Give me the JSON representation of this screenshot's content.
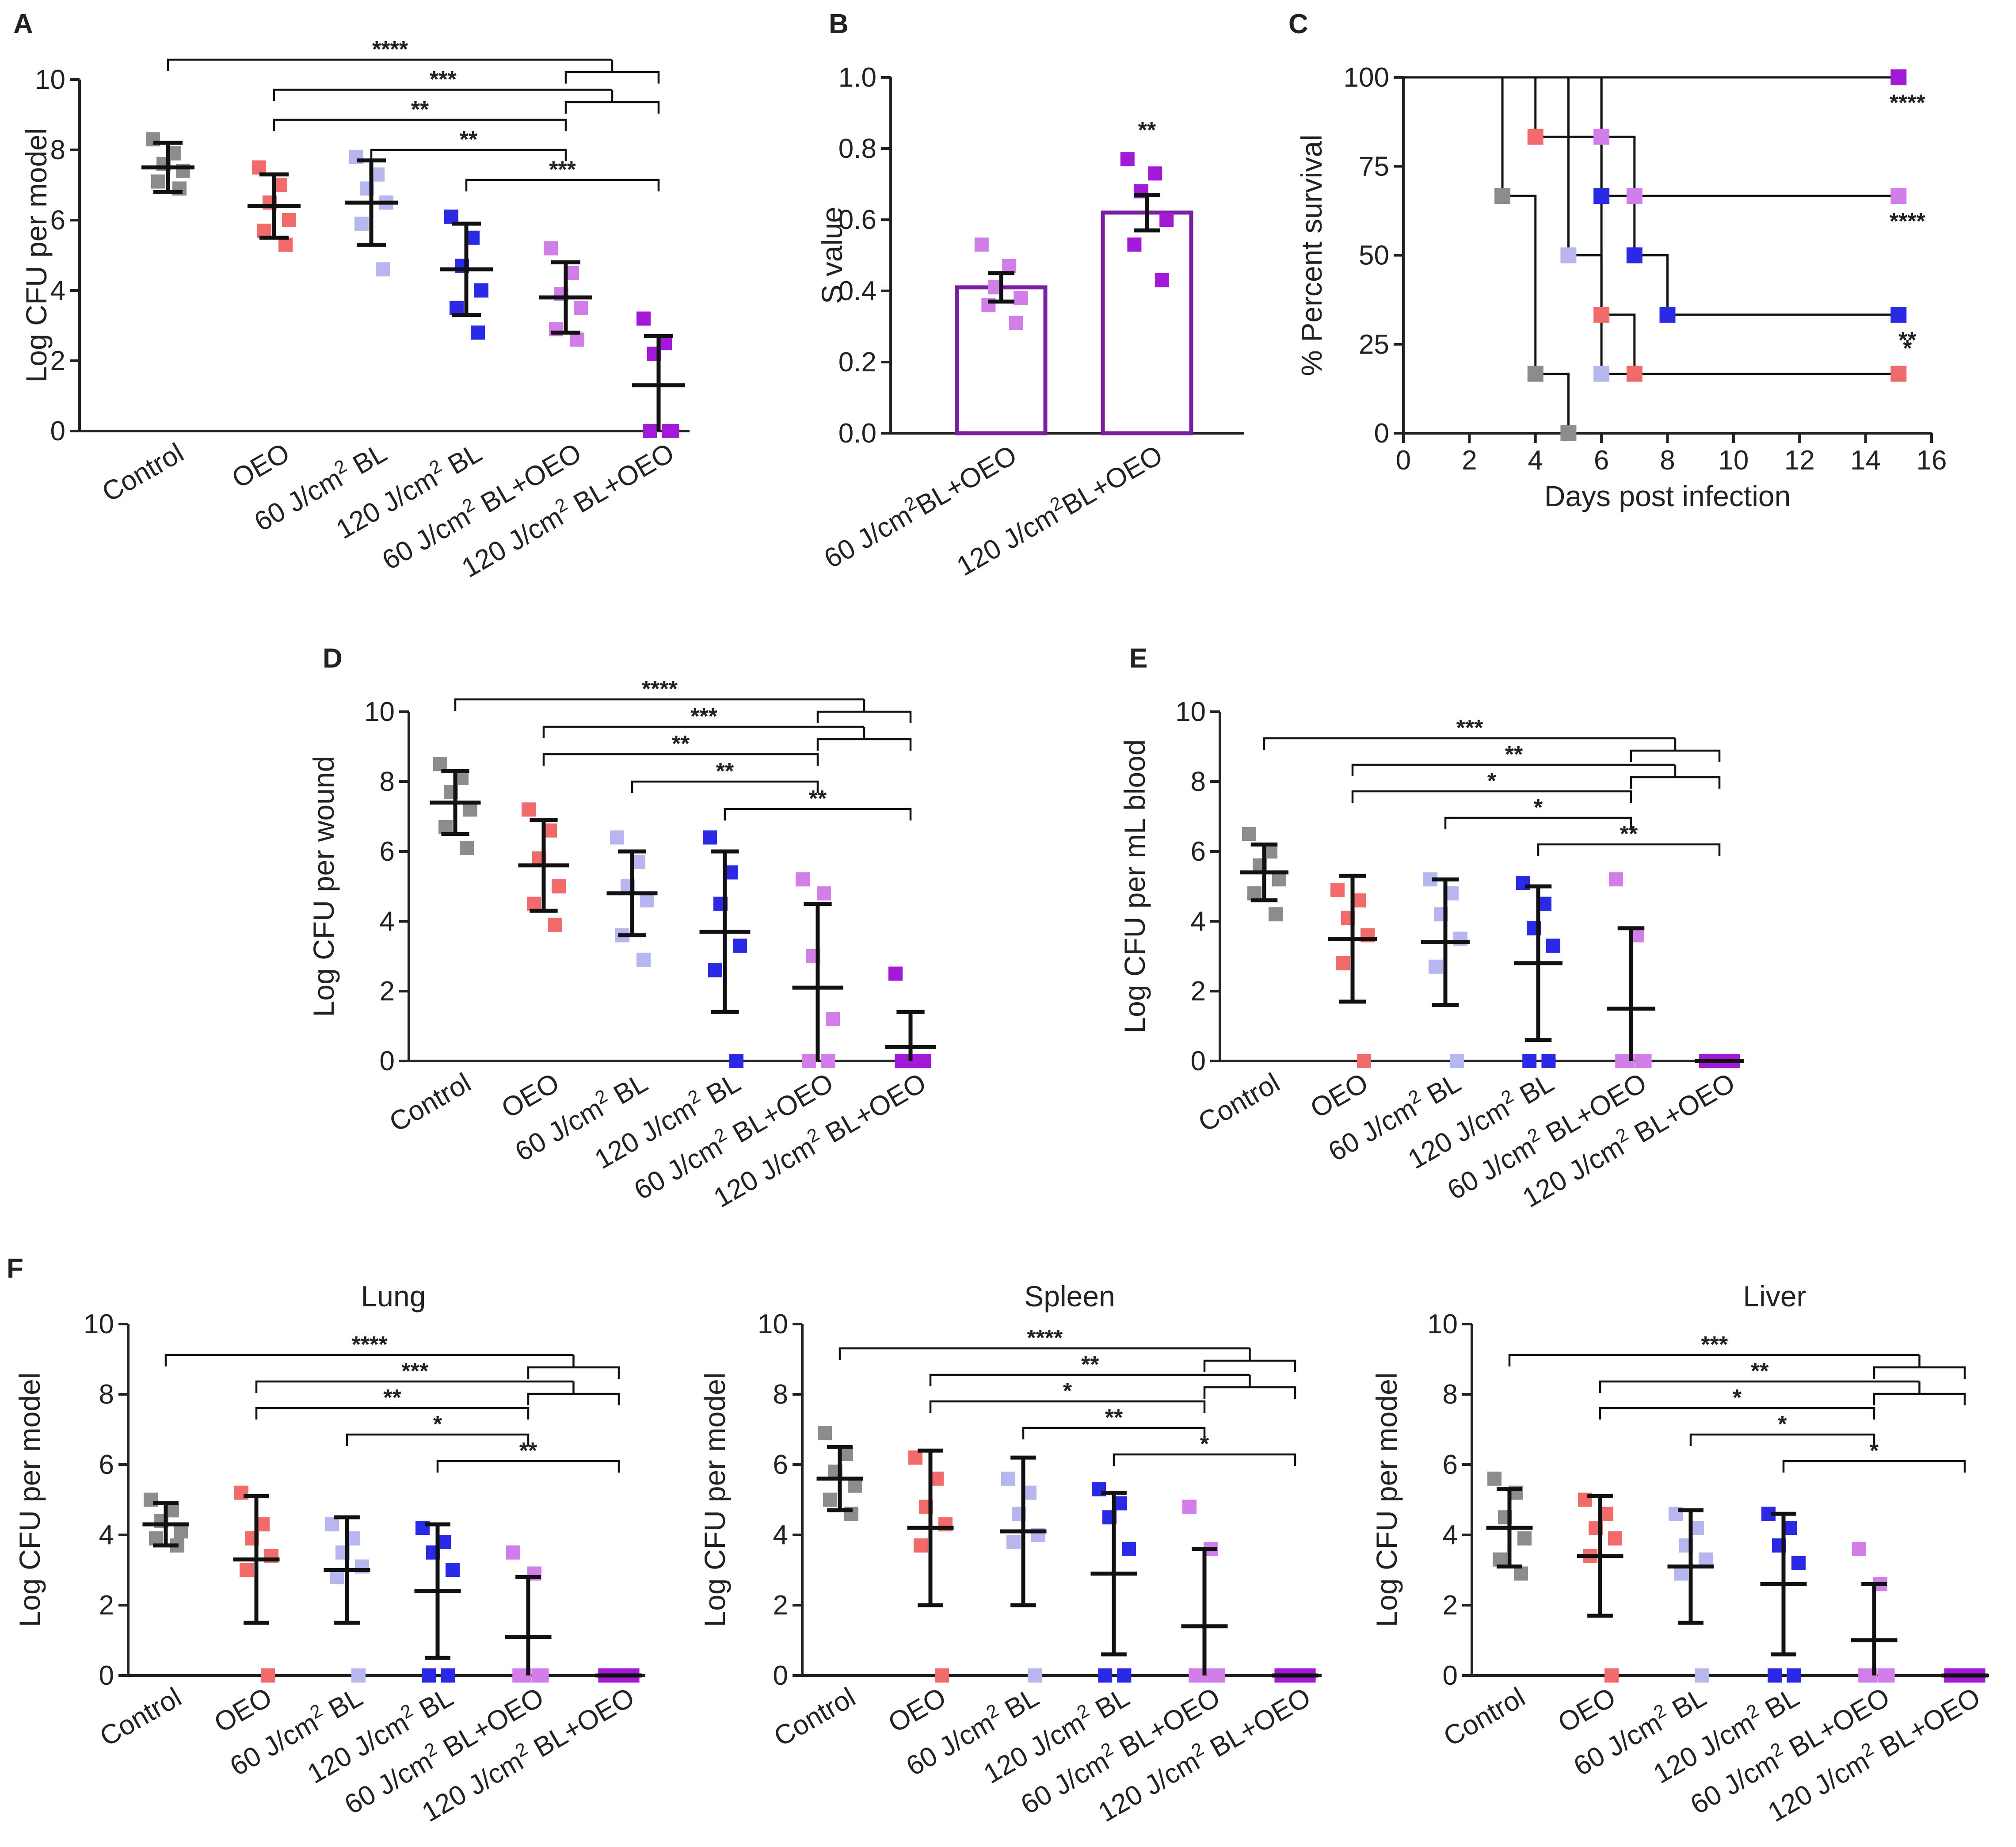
{
  "colors": {
    "Control": "#8c8c8c",
    "OEO": "#f26b6b",
    "60 BL": "#b7b6ee",
    "120 BL": "#2a2ae6",
    "60 BL+OEO": "#d17ee8",
    "120 BL+OEO": "#a21ad8",
    "bar_outline": "#7b1fa2"
  },
  "group_labels": [
    "Control",
    "OEO",
    "60 J/cm2 BL",
    "120 J/cm2 BL",
    "60 J/cm2 BL+OEO",
    "120 J/cm2 BL+OEO"
  ],
  "chart_data": [
    {
      "id": "A",
      "panel_label": "A",
      "type": "scatter",
      "title": "",
      "ylabel": "Log CFU per model",
      "ylim": [
        0,
        10
      ],
      "yticks": [
        "0",
        "2",
        "4",
        "6",
        "8",
        "10"
      ],
      "groups": [
        {
          "name": "Control",
          "mean": 7.5,
          "sd": 0.7,
          "points": [
            8.3,
            7.9,
            7.6,
            7.4,
            7.1,
            6.9
          ]
        },
        {
          "name": "OEO",
          "mean": 6.4,
          "sd": 0.9,
          "points": [
            7.5,
            7.0,
            6.5,
            6.0,
            5.7,
            5.3
          ]
        },
        {
          "name": "60 BL",
          "mean": 6.5,
          "sd": 1.2,
          "points": [
            7.8,
            7.3,
            6.9,
            6.5,
            5.9,
            4.6
          ]
        },
        {
          "name": "120 BL",
          "mean": 4.6,
          "sd": 1.3,
          "points": [
            6.1,
            5.5,
            4.7,
            4.0,
            3.5,
            2.8
          ]
        },
        {
          "name": "60 BL+OEO",
          "mean": 3.8,
          "sd": 1.0,
          "points": [
            5.2,
            4.5,
            3.9,
            3.5,
            2.9,
            2.6
          ]
        },
        {
          "name": "120 BL+OEO",
          "mean": 1.3,
          "sd": 1.4,
          "points": [
            3.2,
            2.5,
            2.2,
            0,
            0,
            0
          ]
        }
      ],
      "comparisons": [
        {
          "from": 0,
          "to": [
            4,
            5
          ],
          "label": "****"
        },
        {
          "from": 1,
          "to": [
            4,
            5
          ],
          "label": "***"
        },
        {
          "from": 1,
          "to": [
            4
          ],
          "label": "**"
        },
        {
          "from": 2,
          "to": [
            4
          ],
          "label": "**"
        },
        {
          "from": 3,
          "to": [
            5
          ],
          "label": "***"
        }
      ]
    },
    {
      "id": "B",
      "panel_label": "B",
      "type": "bar",
      "title": "",
      "ylabel": "S value",
      "ylim": [
        0,
        1.0
      ],
      "yticks": [
        "0.0",
        "0.2",
        "0.4",
        "0.6",
        "0.8",
        "1.0"
      ],
      "categories": [
        "60 J/cm2BL+OEO",
        "120 J/cm2BL+OEO"
      ],
      "values": [
        0.41,
        0.62
      ],
      "sem": [
        0.04,
        0.05
      ],
      "points": [
        [
          0.53,
          0.47,
          0.41,
          0.38,
          0.36,
          0.31
        ],
        [
          0.77,
          0.73,
          0.68,
          0.6,
          0.53,
          0.43
        ]
      ],
      "annotations": [
        {
          "index": 1,
          "label": "**"
        }
      ]
    },
    {
      "id": "C",
      "panel_label": "C",
      "type": "line",
      "title": "",
      "xlabel": "Days post infection",
      "ylabel": "% Percent survival",
      "xlim": [
        0,
        16
      ],
      "ylim": [
        0,
        100
      ],
      "xticks": [
        "0",
        "2",
        "4",
        "6",
        "8",
        "10",
        "12",
        "14",
        "16"
      ],
      "yticks": [
        "0",
        "25",
        "50",
        "75",
        "100"
      ],
      "series": [
        {
          "name": "120 BL+OEO",
          "steps": [
            [
              0,
              100
            ],
            [
              15,
              100
            ]
          ],
          "marks": [
            [
              15,
              100
            ]
          ],
          "label": "****"
        },
        {
          "name": "60 BL+OEO",
          "steps": [
            [
              0,
              100
            ],
            [
              6,
              100
            ],
            [
              6,
              83.3
            ],
            [
              7,
              83.3
            ],
            [
              7,
              66.7
            ],
            [
              15,
              66.7
            ]
          ],
          "marks": [
            [
              6,
              83.3
            ],
            [
              7,
              66.7
            ],
            [
              15,
              66.7
            ]
          ],
          "label": "****"
        },
        {
          "name": "120 BL",
          "steps": [
            [
              0,
              100
            ],
            [
              6,
              100
            ],
            [
              6,
              66.7
            ],
            [
              7,
              66.7
            ],
            [
              7,
              50
            ],
            [
              8,
              50
            ],
            [
              8,
              33.3
            ],
            [
              15,
              33.3
            ]
          ],
          "marks": [
            [
              6,
              66.7
            ],
            [
              7,
              50
            ],
            [
              8,
              33.3
            ],
            [
              15,
              33.3
            ]
          ],
          "label": "**"
        },
        {
          "name": "OEO",
          "steps": [
            [
              0,
              100
            ],
            [
              4,
              100
            ],
            [
              4,
              83.3
            ],
            [
              6,
              83.3
            ],
            [
              6,
              33.3
            ],
            [
              7,
              33.3
            ],
            [
              7,
              16.7
            ],
            [
              15,
              16.7
            ]
          ],
          "marks": [
            [
              4,
              83.3
            ],
            [
              6,
              33.3
            ],
            [
              7,
              16.7
            ],
            [
              15,
              16.7
            ]
          ],
          "label": "*"
        },
        {
          "name": "60 BL",
          "steps": [
            [
              0,
              100
            ],
            [
              5,
              100
            ],
            [
              5,
              50
            ],
            [
              6,
              50
            ],
            [
              6,
              16.7
            ],
            [
              7,
              16.7
            ]
          ],
          "marks": [
            [
              5,
              50
            ],
            [
              6,
              16.7
            ]
          ],
          "label": ""
        },
        {
          "name": "Control",
          "steps": [
            [
              0,
              100
            ],
            [
              3,
              100
            ],
            [
              3,
              66.7
            ],
            [
              4,
              66.7
            ],
            [
              4,
              16.7
            ],
            [
              5,
              16.7
            ],
            [
              5,
              0
            ]
          ],
          "marks": [
            [
              3,
              66.7
            ],
            [
              4,
              16.7
            ],
            [
              5,
              0
            ]
          ],
          "label": ""
        }
      ]
    },
    {
      "id": "D",
      "panel_label": "D",
      "type": "scatter",
      "title": "",
      "ylabel": "Log CFU per wound",
      "ylim": [
        0,
        10
      ],
      "yticks": [
        "0",
        "2",
        "4",
        "6",
        "8",
        "10"
      ],
      "groups": [
        {
          "name": "Control",
          "mean": 7.4,
          "sd": 0.9,
          "points": [
            8.5,
            8.1,
            7.7,
            7.2,
            6.7,
            6.1
          ]
        },
        {
          "name": "OEO",
          "mean": 5.6,
          "sd": 1.3,
          "points": [
            7.2,
            6.6,
            5.8,
            5.0,
            4.5,
            3.9
          ]
        },
        {
          "name": "60 BL",
          "mean": 4.8,
          "sd": 1.2,
          "points": [
            6.4,
            5.7,
            5.0,
            4.6,
            3.6,
            2.9
          ]
        },
        {
          "name": "120 BL",
          "mean": 3.7,
          "sd": 2.3,
          "points": [
            6.4,
            5.4,
            4.5,
            3.3,
            2.6,
            0
          ]
        },
        {
          "name": "60 BL+OEO",
          "mean": 2.1,
          "sd": 2.4,
          "points": [
            5.2,
            4.8,
            3.0,
            1.2,
            0,
            0
          ]
        },
        {
          "name": "120 BL+OEO",
          "mean": 0.4,
          "sd": 1.0,
          "points": [
            2.5,
            0,
            0,
            0,
            0,
            0
          ]
        }
      ],
      "comparisons": [
        {
          "from": 0,
          "to": [
            4,
            5
          ],
          "label": "****"
        },
        {
          "from": 1,
          "to": [
            4,
            5
          ],
          "label": "***"
        },
        {
          "from": 1,
          "to": [
            4
          ],
          "label": "**"
        },
        {
          "from": 2,
          "to": [
            4
          ],
          "label": "**"
        },
        {
          "from": 3,
          "to": [
            5
          ],
          "label": "**"
        }
      ]
    },
    {
      "id": "E",
      "panel_label": "E",
      "type": "scatter",
      "title": "",
      "ylabel": "Log CFU per mL blood",
      "ylim": [
        0,
        10
      ],
      "yticks": [
        "0",
        "2",
        "4",
        "6",
        "8",
        "10"
      ],
      "groups": [
        {
          "name": "Control",
          "mean": 5.4,
          "sd": 0.8,
          "points": [
            6.5,
            6.0,
            5.6,
            5.2,
            4.8,
            4.2
          ]
        },
        {
          "name": "OEO",
          "mean": 3.5,
          "sd": 1.8,
          "points": [
            4.9,
            4.6,
            4.1,
            3.6,
            2.8,
            0
          ]
        },
        {
          "name": "60 BL",
          "mean": 3.4,
          "sd": 1.8,
          "points": [
            5.2,
            4.8,
            4.2,
            3.5,
            2.7,
            0
          ]
        },
        {
          "name": "120 BL",
          "mean": 2.8,
          "sd": 2.2,
          "points": [
            5.1,
            4.5,
            3.8,
            3.3,
            0,
            0
          ]
        },
        {
          "name": "60 BL+OEO",
          "mean": 1.5,
          "sd": 2.3,
          "points": [
            5.2,
            3.6,
            0,
            0,
            0,
            0
          ]
        },
        {
          "name": "120 BL+OEO",
          "mean": 0,
          "sd": 0,
          "points": [
            0,
            0,
            0,
            0,
            0,
            0
          ]
        }
      ],
      "comparisons": [
        {
          "from": 0,
          "to": [
            4,
            5
          ],
          "label": "***"
        },
        {
          "from": 1,
          "to": [
            4,
            5
          ],
          "label": "**"
        },
        {
          "from": 1,
          "to": [
            4
          ],
          "label": "*"
        },
        {
          "from": 2,
          "to": [
            4
          ],
          "label": "*"
        },
        {
          "from": 3,
          "to": [
            5
          ],
          "label": "**"
        }
      ]
    },
    {
      "id": "F-Lung",
      "panel_label": "F",
      "type": "scatter",
      "title": "Lung",
      "ylabel": "Log CFU per model",
      "ylim": [
        0,
        10
      ],
      "yticks": [
        "0",
        "2",
        "4",
        "6",
        "8",
        "10"
      ],
      "groups": [
        {
          "name": "Control",
          "mean": 4.3,
          "sd": 0.6,
          "points": [
            5.0,
            4.7,
            4.4,
            4.1,
            3.9,
            3.7
          ]
        },
        {
          "name": "OEO",
          "mean": 3.3,
          "sd": 1.8,
          "points": [
            5.2,
            4.3,
            3.9,
            3.4,
            3.0,
            0
          ]
        },
        {
          "name": "60 BL",
          "mean": 3.0,
          "sd": 1.5,
          "points": [
            4.3,
            3.9,
            3.5,
            3.1,
            2.8,
            0
          ]
        },
        {
          "name": "120 BL",
          "mean": 2.4,
          "sd": 1.9,
          "points": [
            4.2,
            3.8,
            3.5,
            3.0,
            0,
            0
          ]
        },
        {
          "name": "60 BL+OEO",
          "mean": 1.1,
          "sd": 1.7,
          "points": [
            3.5,
            2.9,
            0,
            0,
            0,
            0
          ]
        },
        {
          "name": "120 BL+OEO",
          "mean": 0,
          "sd": 0,
          "points": [
            0,
            0,
            0,
            0,
            0,
            0
          ]
        }
      ],
      "comparisons": [
        {
          "from": 0,
          "to": [
            4,
            5
          ],
          "label": "****"
        },
        {
          "from": 1,
          "to": [
            4,
            5
          ],
          "label": "***"
        },
        {
          "from": 1,
          "to": [
            4
          ],
          "label": "**"
        },
        {
          "from": 2,
          "to": [
            4
          ],
          "label": "*"
        },
        {
          "from": 3,
          "to": [
            5
          ],
          "label": "**"
        }
      ]
    },
    {
      "id": "F-Spleen",
      "panel_label": "",
      "type": "scatter",
      "title": "Spleen",
      "ylabel": "Log CFU per model",
      "ylim": [
        0,
        10
      ],
      "yticks": [
        "0",
        "2",
        "4",
        "6",
        "8",
        "10"
      ],
      "groups": [
        {
          "name": "Control",
          "mean": 5.6,
          "sd": 0.9,
          "points": [
            6.9,
            6.3,
            5.8,
            5.4,
            5.0,
            4.6
          ]
        },
        {
          "name": "OEO",
          "mean": 4.2,
          "sd": 2.2,
          "points": [
            6.2,
            5.6,
            4.8,
            4.3,
            3.7,
            0
          ]
        },
        {
          "name": "60 BL",
          "mean": 4.1,
          "sd": 2.1,
          "points": [
            5.6,
            5.2,
            4.6,
            4.0,
            3.8,
            0
          ]
        },
        {
          "name": "120 BL",
          "mean": 2.9,
          "sd": 2.3,
          "points": [
            5.3,
            4.9,
            4.5,
            3.6,
            0,
            0
          ]
        },
        {
          "name": "60 BL+OEO",
          "mean": 1.4,
          "sd": 2.2,
          "points": [
            4.8,
            3.6,
            0,
            0,
            0,
            0
          ]
        },
        {
          "name": "120 BL+OEO",
          "mean": 0,
          "sd": 0,
          "points": [
            0,
            0,
            0,
            0,
            0,
            0
          ]
        }
      ],
      "comparisons": [
        {
          "from": 0,
          "to": [
            4,
            5
          ],
          "label": "****"
        },
        {
          "from": 1,
          "to": [
            4,
            5
          ],
          "label": "**"
        },
        {
          "from": 1,
          "to": [
            4
          ],
          "label": "*"
        },
        {
          "from": 2,
          "to": [
            4
          ],
          "label": "**"
        },
        {
          "from": 3,
          "to": [
            5
          ],
          "label": "*"
        }
      ]
    },
    {
      "id": "F-Liver",
      "panel_label": "",
      "type": "scatter",
      "title": "Liver",
      "ylabel": "Log CFU per model",
      "ylim": [
        0,
        10
      ],
      "yticks": [
        "0",
        "2",
        "4",
        "6",
        "8",
        "10"
      ],
      "groups": [
        {
          "name": "Control",
          "mean": 4.2,
          "sd": 1.1,
          "points": [
            5.6,
            5.2,
            4.5,
            3.9,
            3.3,
            2.9
          ]
        },
        {
          "name": "OEO",
          "mean": 3.4,
          "sd": 1.7,
          "points": [
            5.0,
            4.6,
            4.2,
            3.9,
            3.4,
            0
          ]
        },
        {
          "name": "60 BL",
          "mean": 3.1,
          "sd": 1.6,
          "points": [
            4.6,
            4.2,
            3.7,
            3.3,
            2.9,
            0
          ]
        },
        {
          "name": "120 BL",
          "mean": 2.6,
          "sd": 2.0,
          "points": [
            4.6,
            4.2,
            3.7,
            3.2,
            0,
            0
          ]
        },
        {
          "name": "60 BL+OEO",
          "mean": 1.0,
          "sd": 1.6,
          "points": [
            3.6,
            2.6,
            0,
            0,
            0,
            0
          ]
        },
        {
          "name": "120 BL+OEO",
          "mean": 0,
          "sd": 0,
          "points": [
            0,
            0,
            0,
            0,
            0,
            0
          ]
        }
      ],
      "comparisons": [
        {
          "from": 0,
          "to": [
            4,
            5
          ],
          "label": "***"
        },
        {
          "from": 1,
          "to": [
            4,
            5
          ],
          "label": "**"
        },
        {
          "from": 1,
          "to": [
            4
          ],
          "label": "*"
        },
        {
          "from": 2,
          "to": [
            4
          ],
          "label": "*"
        },
        {
          "from": 3,
          "to": [
            5
          ],
          "label": "*"
        }
      ]
    }
  ]
}
